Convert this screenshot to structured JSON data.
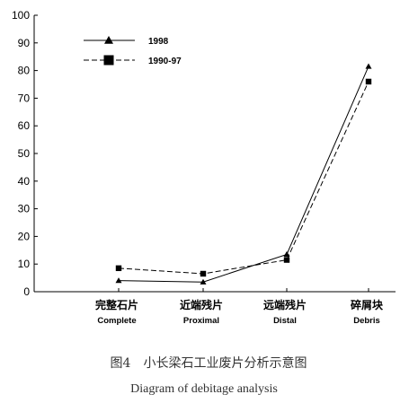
{
  "chart_data": {
    "type": "line",
    "categories": [
      {
        "cn": "完整石片",
        "en": "Complete"
      },
      {
        "cn": "近端残片",
        "en": "Proximal"
      },
      {
        "cn": "远端残片",
        "en": "Distal"
      },
      {
        "cn": "碎屑块",
        "en": "Debris"
      }
    ],
    "series": [
      {
        "name": "1998",
        "values": [
          4,
          3.5,
          13.5,
          81.5
        ],
        "marker": "triangle",
        "line": "solid"
      },
      {
        "name": "1990-97",
        "values": [
          8.5,
          6.5,
          11.5,
          76
        ],
        "marker": "square",
        "line": "dashed"
      }
    ],
    "ylim": [
      0,
      100
    ],
    "yticks": [
      0,
      10,
      20,
      30,
      40,
      50,
      60,
      70,
      80,
      90,
      100
    ],
    "grid": false,
    "legend_position": "top-left",
    "caption_cn": "图4　小长梁石工业废片分析示意图",
    "caption_en": "Diagram of debitage analysis",
    "colors": {
      "line": "#000000",
      "caption": "#333333"
    }
  }
}
